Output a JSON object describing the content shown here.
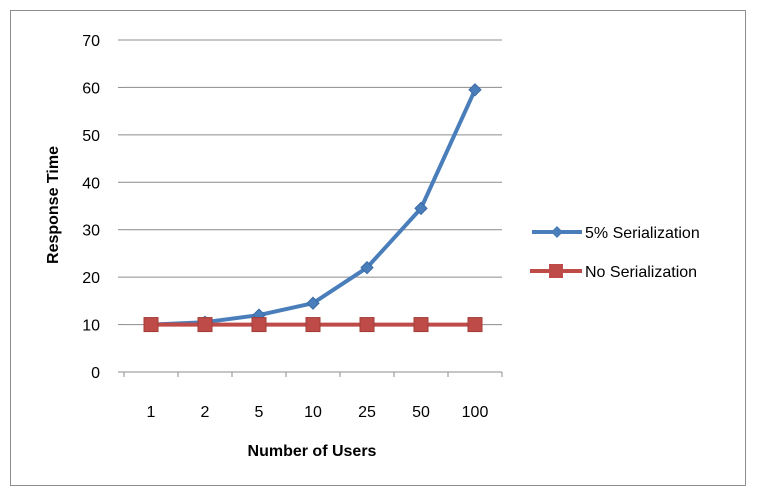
{
  "chart_data": {
    "type": "line",
    "categories": [
      "1",
      "2",
      "5",
      "10",
      "25",
      "50",
      "100"
    ],
    "series": [
      {
        "name": "5% Serialization",
        "color": "#4a7ebb",
        "marker": "diamond",
        "values": [
          10,
          10.5,
          12,
          14.5,
          22,
          34.5,
          59.5
        ]
      },
      {
        "name": "No Serialization",
        "color": "#be4b48",
        "marker": "square",
        "values": [
          10,
          10,
          10,
          10,
          10,
          10,
          10
        ]
      }
    ],
    "xlabel": "Number of Users",
    "ylabel": "Response Time",
    "ylim": [
      0,
      70
    ],
    "yticks": [
      0,
      10,
      20,
      30,
      40,
      50,
      60,
      70
    ],
    "grid": true,
    "legend_position": "right"
  }
}
